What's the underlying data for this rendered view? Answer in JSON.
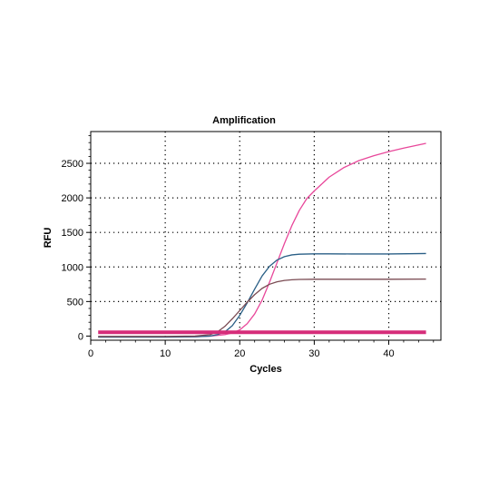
{
  "chart_data": {
    "type": "line",
    "title": "Amplification",
    "xlabel": "Cycles",
    "ylabel": "RFU",
    "xlim": [
      0,
      47
    ],
    "ylim": [
      -60,
      2960
    ],
    "xticks": [
      0,
      10,
      20,
      30,
      40
    ],
    "yticks": [
      0,
      500,
      1000,
      1500,
      2000,
      2500
    ],
    "grid": true,
    "threshold": {
      "value": 55,
      "color": "#d62d7a"
    },
    "series": [
      {
        "color": "#e8479a",
        "x": [
          1,
          5,
          10,
          14,
          16,
          18,
          19,
          20,
          21,
          22,
          23,
          24,
          25,
          26,
          27,
          28,
          29,
          30,
          32,
          34,
          36,
          38,
          40,
          42,
          45
        ],
        "y": [
          -10,
          -12,
          -12,
          -8,
          0,
          20,
          45,
          90,
          180,
          320,
          520,
          780,
          1060,
          1340,
          1600,
          1820,
          1990,
          2100,
          2300,
          2440,
          2540,
          2610,
          2670,
          2720,
          2790
        ]
      },
      {
        "color": "#2a5f86",
        "x": [
          1,
          5,
          10,
          14,
          16,
          17,
          18,
          19,
          20,
          21,
          22,
          23,
          24,
          25,
          26,
          27,
          28,
          30,
          32,
          35,
          40,
          45
        ],
        "y": [
          -15,
          -15,
          -15,
          -10,
          0,
          20,
          60,
          150,
          300,
          480,
          680,
          870,
          1010,
          1100,
          1150,
          1175,
          1185,
          1190,
          1190,
          1188,
          1188,
          1195
        ]
      },
      {
        "color": "#7a4a52",
        "x": [
          1,
          5,
          10,
          14,
          16,
          17,
          18,
          19,
          20,
          21,
          22,
          23,
          24,
          25,
          26,
          27,
          28,
          30,
          35,
          40,
          45
        ],
        "y": [
          -5,
          -5,
          -5,
          0,
          20,
          60,
          140,
          250,
          370,
          490,
          600,
          690,
          750,
          785,
          805,
          815,
          820,
          822,
          822,
          822,
          825
        ]
      }
    ]
  }
}
